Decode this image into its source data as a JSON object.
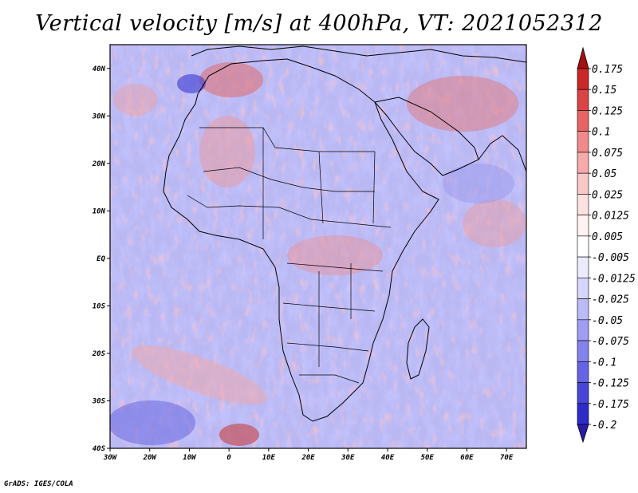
{
  "title": "Vertical velocity [m/s] at 400hPa, VT: 2021052312",
  "credit": "GrADS: IGES/COLA",
  "map": {
    "lon_range": [
      -30,
      75
    ],
    "lat_range": [
      -40,
      45
    ],
    "lat_ticks": [
      {
        "value": 40,
        "label": "40N"
      },
      {
        "value": 30,
        "label": "30N"
      },
      {
        "value": 20,
        "label": "20N"
      },
      {
        "value": 10,
        "label": "10N"
      },
      {
        "value": 0,
        "label": "EQ"
      },
      {
        "value": -10,
        "label": "10S"
      },
      {
        "value": -20,
        "label": "20S"
      },
      {
        "value": -30,
        "label": "30S"
      },
      {
        "value": -40,
        "label": "40S"
      }
    ],
    "lon_ticks": [
      {
        "value": -30,
        "label": "30W"
      },
      {
        "value": -20,
        "label": "20W"
      },
      {
        "value": -10,
        "label": "10W"
      },
      {
        "value": 0,
        "label": "0"
      },
      {
        "value": 10,
        "label": "10E"
      },
      {
        "value": 20,
        "label": "20E"
      },
      {
        "value": 30,
        "label": "30E"
      },
      {
        "value": 40,
        "label": "40E"
      },
      {
        "value": 50,
        "label": "50E"
      },
      {
        "value": 60,
        "label": "60E"
      },
      {
        "value": 70,
        "label": "70E"
      }
    ],
    "field": "vertical velocity",
    "level": "400hPa",
    "valid_time": "2021052312"
  },
  "colorbar": {
    "levels": [
      {
        "label": "0.175",
        "color": "#b51a1a"
      },
      {
        "label": "0.15",
        "color": "#c82828"
      },
      {
        "label": "0.125",
        "color": "#da4444"
      },
      {
        "label": "0.1",
        "color": "#e86464"
      },
      {
        "label": "0.075",
        "color": "#f08a8a"
      },
      {
        "label": "0.05",
        "color": "#f6aaaa"
      },
      {
        "label": "0.025",
        "color": "#fac8c8"
      },
      {
        "label": "0.0125",
        "color": "#fde0e0"
      },
      {
        "label": "0.005",
        "color": "#fff2f2"
      },
      {
        "label": "-0.005",
        "color": "#ffffff"
      },
      {
        "label": "-0.0125",
        "color": "#ecebfd"
      },
      {
        "label": "-0.025",
        "color": "#d6d5fb"
      },
      {
        "label": "-0.05",
        "color": "#bcbaf7"
      },
      {
        "label": "-0.075",
        "color": "#a09ef2"
      },
      {
        "label": "-0.1",
        "color": "#8482ec"
      },
      {
        "label": "-0.125",
        "color": "#6664e4"
      },
      {
        "label": "-0.175",
        "color": "#4846d8"
      },
      {
        "label": "-0.2",
        "color": "#2e2cc8"
      }
    ],
    "top_arrow_color": "#a31010",
    "bottom_arrow_color": "#2a1aa8"
  }
}
